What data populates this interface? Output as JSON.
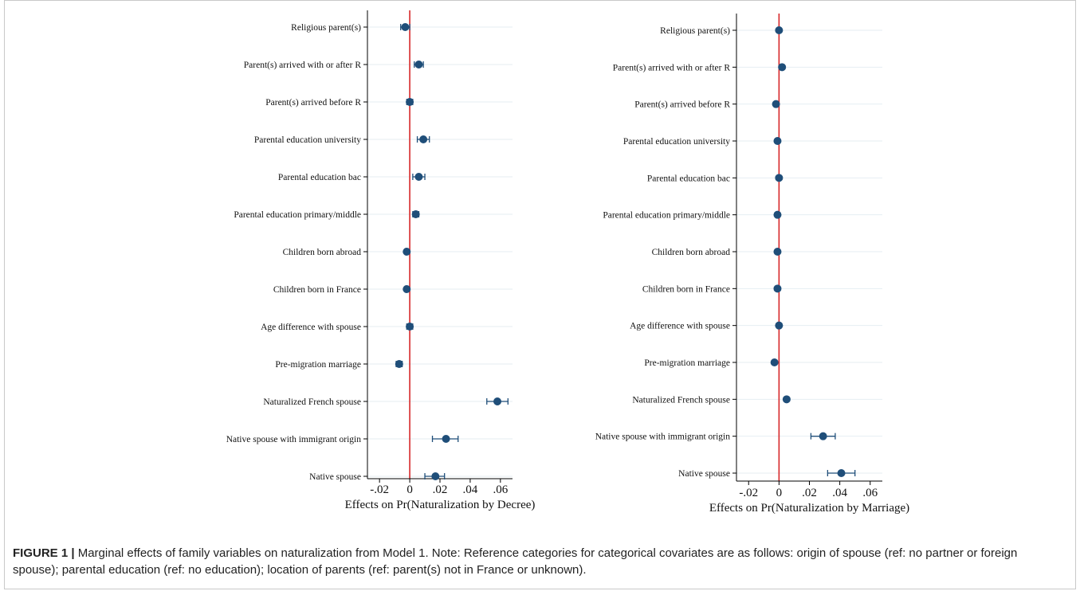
{
  "colors": {
    "marker": "#1f4e79",
    "zero_line": "#d62728",
    "grid": "#e6eef2",
    "axis": "#000000"
  },
  "chart_data": [
    {
      "type": "scatter",
      "subtype": "coefficient-plot-with-confidence-intervals",
      "xlabel": "Effects on Pr(Naturalization by Decree)",
      "xlim": [
        -0.028,
        0.068
      ],
      "xticks": [
        -0.02,
        0,
        0.02,
        0.04,
        0.06
      ],
      "xtick_labels": [
        "-.02",
        "0",
        ".02",
        ".04",
        ".06"
      ],
      "reference_line_x": 0,
      "grid": true,
      "categories": [
        "Religious parent(s)",
        "Parent(s) arrived with or after R",
        "Parent(s) arrived before R",
        "Parental education university",
        "Parental education bac",
        "Parental education primary/middle",
        "Children born abroad",
        "Children born in France",
        "Age difference with spouse",
        "Pre-migration marriage",
        "Naturalized French spouse",
        "Native spouse with immigrant origin",
        "Native spouse"
      ],
      "estimates": [
        -0.003,
        0.006,
        0.0,
        0.009,
        0.006,
        0.004,
        -0.002,
        -0.002,
        0.0,
        -0.007,
        0.058,
        0.024,
        0.017
      ],
      "ci_lower": [
        -0.006,
        0.003,
        -0.002,
        0.005,
        0.002,
        0.002,
        -0.003,
        -0.003,
        -0.002,
        -0.009,
        0.051,
        0.015,
        0.01
      ],
      "ci_upper": [
        0.0,
        0.009,
        0.002,
        0.013,
        0.01,
        0.006,
        -0.001,
        -0.001,
        0.002,
        -0.005,
        0.065,
        0.032,
        0.023
      ]
    },
    {
      "type": "scatter",
      "subtype": "coefficient-plot-with-confidence-intervals",
      "xlabel": "Effects on Pr(Naturalization by Marriage)",
      "xlim": [
        -0.028,
        0.068
      ],
      "xticks": [
        -0.02,
        0,
        0.02,
        0.04,
        0.06
      ],
      "xtick_labels": [
        "-.02",
        "0",
        ".02",
        ".04",
        ".06"
      ],
      "reference_line_x": 0,
      "grid": true,
      "categories": [
        "Religious parent(s)",
        "Parent(s) arrived with or after R",
        "Parent(s) arrived before R",
        "Parental education university",
        "Parental education bac",
        "Parental education primary/middle",
        "Children born abroad",
        "Children born in France",
        "Age difference with spouse",
        "Pre-migration marriage",
        "Naturalized French spouse",
        "Native spouse with immigrant origin",
        "Native spouse"
      ],
      "estimates": [
        0.0,
        0.002,
        -0.002,
        -0.001,
        0.0,
        -0.001,
        -0.001,
        -0.001,
        0.0,
        -0.003,
        0.005,
        0.029,
        0.041
      ],
      "ci_lower": [
        -0.001,
        0.001,
        -0.003,
        -0.002,
        -0.001,
        -0.002,
        -0.002,
        -0.002,
        -0.001,
        -0.004,
        0.004,
        0.021,
        0.032
      ],
      "ci_upper": [
        0.001,
        0.003,
        -0.001,
        0.0,
        0.001,
        0.0,
        0.0,
        0.0,
        0.001,
        -0.002,
        0.006,
        0.037,
        0.05
      ]
    }
  ],
  "caption": {
    "label": "FIGURE 1 |",
    "text": " Marginal effects of family variables on naturalization from Model 1. Note: Reference categories for categorical covariates are as follows: origin of spouse (ref: no partner or foreign spouse); parental education (ref: no education); location of parents (ref: parent(s) not in France or unknown)."
  }
}
